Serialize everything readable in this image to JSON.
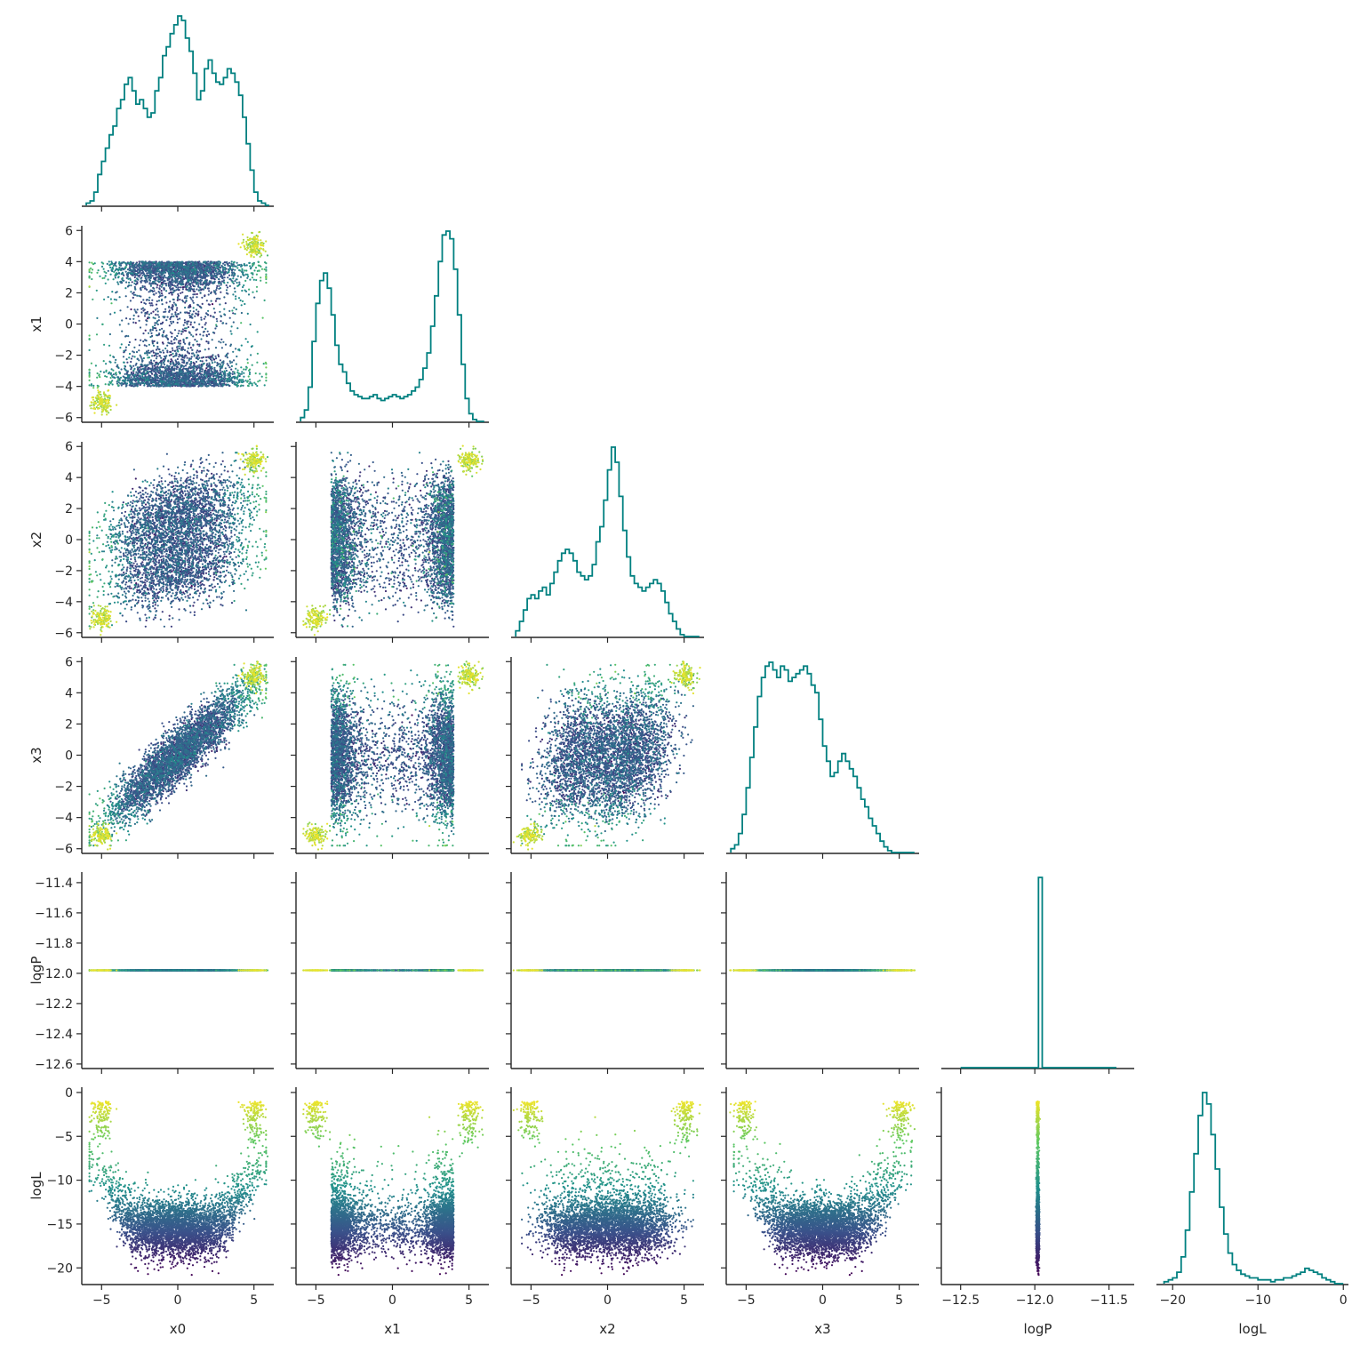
{
  "chart_data": {
    "type": "corner",
    "title": "",
    "variables": [
      "x0",
      "x1",
      "x2",
      "x3",
      "logP",
      "logL"
    ],
    "axis_labels": [
      "x0",
      "x1",
      "x2",
      "x3",
      "logP",
      "logL"
    ],
    "ranges": [
      [
        -6.3,
        6.3
      ],
      [
        -6.3,
        6.3
      ],
      [
        -6.3,
        6.3
      ],
      [
        -6.3,
        6.3
      ],
      [
        -12.63,
        -11.33
      ],
      [
        -21.9,
        0.6
      ]
    ],
    "ticks": [
      [
        -5,
        0,
        5
      ],
      [
        -5,
        0,
        5
      ],
      [
        -5,
        0,
        5
      ],
      [
        -5,
        0,
        5
      ],
      [
        -12.5,
        -12.0,
        -11.5
      ],
      [
        -20,
        -10,
        0
      ]
    ],
    "tick_labels": [
      [
        "−5",
        "0",
        "5"
      ],
      [
        "−5",
        "0",
        "5"
      ],
      [
        "−5",
        "0",
        "5"
      ],
      [
        "−5",
        "0",
        "5"
      ],
      [
        "−12.5",
        "−12.0",
        "−11.5"
      ],
      [
        "−20",
        "−10",
        "0"
      ]
    ],
    "y_ticks": [
      [],
      [
        -6,
        -4,
        -2,
        0,
        2,
        4,
        6
      ],
      [
        -6,
        -4,
        -2,
        0,
        2,
        4,
        6
      ],
      [
        -6,
        -4,
        -2,
        0,
        2,
        4,
        6
      ],
      [
        -12.6,
        -12.4,
        -12.2,
        -12.0,
        -11.8,
        -11.6,
        -11.4
      ],
      [
        -20,
        -15,
        -10,
        -5,
        0
      ]
    ],
    "y_tick_labels": [
      [],
      [
        "−6",
        "−4",
        "−2",
        "0",
        "2",
        "4",
        "6"
      ],
      [
        "−6",
        "−4",
        "−2",
        "0",
        "2",
        "4",
        "6"
      ],
      [
        "−6",
        "−4",
        "−2",
        "0",
        "2",
        "4",
        "6"
      ],
      [
        "−12.6",
        "−12.4",
        "−12.2",
        "−12.0",
        "−11.8",
        "−11.6",
        "−11.4"
      ],
      [
        "−20",
        "−15",
        "−10",
        "−5",
        "0"
      ]
    ],
    "histogram_color": "#008080",
    "scatter_colormap": "viridis",
    "scatter_color_variable": "logL",
    "logP_constant": -11.98,
    "histograms": {
      "x0": {
        "range": [
          -6,
          6
        ],
        "bins": 48,
        "counts": [
          1,
          2,
          6,
          14,
          20,
          26,
          32,
          36,
          44,
          48,
          55,
          58,
          52,
          46,
          48,
          44,
          40,
          42,
          52,
          58,
          68,
          72,
          78,
          82,
          86,
          84,
          76,
          70,
          60,
          48,
          52,
          62,
          66,
          60,
          56,
          55,
          58,
          62,
          60,
          56,
          50,
          40,
          28,
          16,
          6,
          2,
          1,
          0
        ]
      },
      "x1": {
        "range": [
          -6,
          6
        ],
        "bins": 48,
        "counts": [
          2,
          6,
          18,
          42,
          62,
          74,
          78,
          70,
          56,
          40,
          30,
          26,
          20,
          16,
          14,
          13,
          12,
          12,
          13,
          14,
          12,
          11,
          12,
          13,
          14,
          13,
          12,
          13,
          14,
          16,
          18,
          22,
          28,
          36,
          50,
          66,
          84,
          98,
          100,
          96,
          80,
          56,
          30,
          12,
          4,
          1,
          0,
          0
        ]
      },
      "x2": {
        "range": [
          -6,
          6
        ],
        "bins": 48,
        "counts": [
          3,
          8,
          14,
          20,
          22,
          20,
          24,
          26,
          22,
          28,
          34,
          40,
          44,
          46,
          44,
          40,
          34,
          32,
          30,
          32,
          38,
          50,
          58,
          72,
          88,
          100,
          92,
          74,
          56,
          42,
          32,
          28,
          26,
          24,
          26,
          28,
          30,
          28,
          24,
          18,
          12,
          8,
          4,
          1,
          0,
          0,
          0,
          0
        ]
      },
      "x3": {
        "range": [
          -6,
          6
        ],
        "bins": 48,
        "counts": [
          2,
          4,
          10,
          20,
          34,
          50,
          66,
          82,
          92,
          98,
          100,
          96,
          92,
          98,
          96,
          90,
          92,
          94,
          96,
          98,
          94,
          88,
          84,
          70,
          56,
          48,
          40,
          42,
          48,
          52,
          48,
          44,
          40,
          34,
          28,
          24,
          18,
          14,
          10,
          6,
          3,
          1,
          0,
          0,
          0,
          0,
          0,
          0
        ]
      },
      "logP": {
        "range": [
          -12.5,
          -11.45
        ],
        "bins": 42,
        "counts": [
          0,
          0,
          0,
          0,
          0,
          0,
          0,
          0,
          0,
          0,
          0,
          0,
          0,
          0,
          0,
          0,
          0,
          0,
          0,
          0,
          0,
          100,
          0,
          0,
          0,
          0,
          0,
          0,
          0,
          0,
          0,
          0,
          0,
          0,
          0,
          0,
          0,
          0,
          0,
          0,
          0,
          0
        ]
      },
      "logL": {
        "range": [
          -21,
          0
        ],
        "bins": 42,
        "counts": [
          1,
          2,
          3,
          6,
          14,
          28,
          48,
          68,
          88,
          100,
          94,
          78,
          60,
          40,
          26,
          16,
          10,
          7,
          5,
          4,
          3,
          3,
          2,
          2,
          2,
          1,
          2,
          2,
          3,
          3,
          4,
          5,
          6,
          8,
          7,
          6,
          5,
          3,
          2,
          1,
          0,
          0
        ]
      }
    }
  }
}
